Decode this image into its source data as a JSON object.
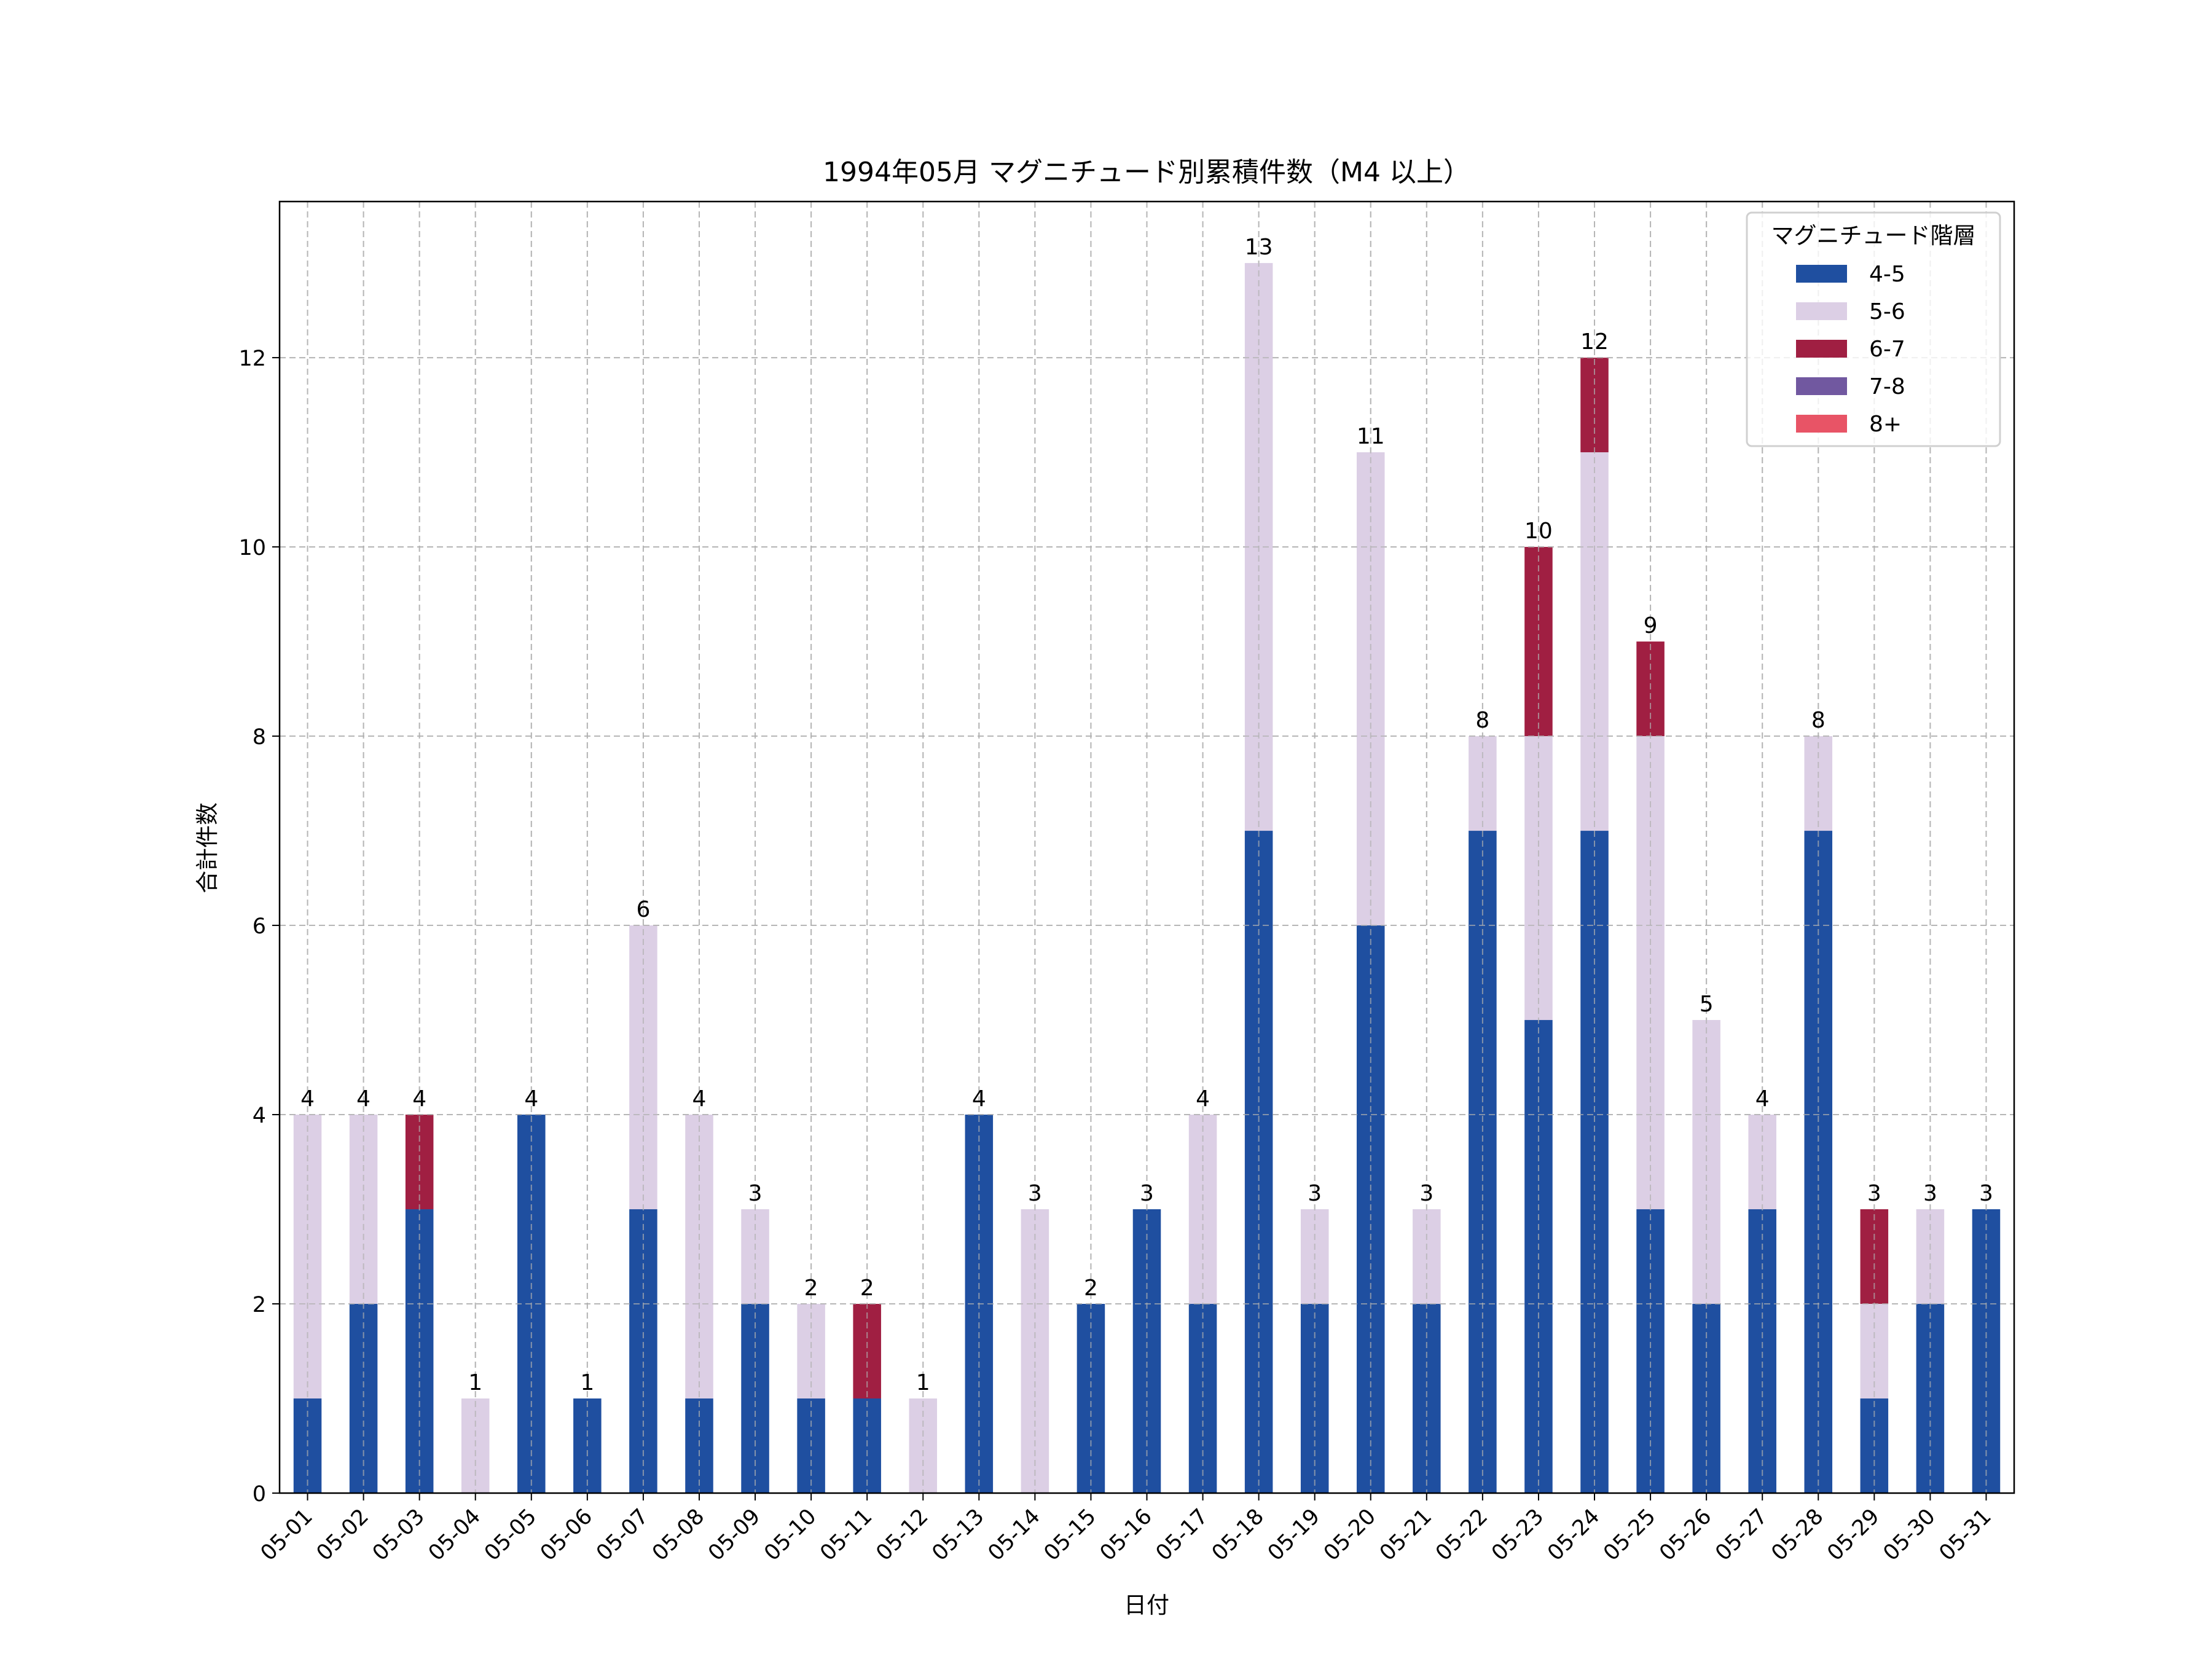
{
  "chart_data": {
    "type": "bar",
    "stacked": true,
    "title": "1994年05月 マグニチュード別累積件数（M4 以上）",
    "xlabel": "日付",
    "ylabel": "合計件数",
    "ylim": [
      0,
      13.65
    ],
    "yticks": [
      0,
      2,
      4,
      6,
      8,
      10,
      12
    ],
    "grid": true,
    "legend": {
      "title": "マグニチュード階層",
      "placement": "top-right"
    },
    "categories": [
      "05-01",
      "05-02",
      "05-03",
      "05-04",
      "05-05",
      "05-06",
      "05-07",
      "05-08",
      "05-09",
      "05-10",
      "05-11",
      "05-12",
      "05-13",
      "05-14",
      "05-15",
      "05-16",
      "05-17",
      "05-18",
      "05-19",
      "05-20",
      "05-21",
      "05-22",
      "05-23",
      "05-24",
      "05-25",
      "05-26",
      "05-27",
      "05-28",
      "05-29",
      "05-30",
      "05-31"
    ],
    "series": [
      {
        "name": "4-5",
        "color": "#1f4fa0",
        "values": [
          1,
          2,
          3,
          0,
          4,
          1,
          3,
          1,
          2,
          1,
          1,
          0,
          4,
          0,
          2,
          3,
          2,
          7,
          2,
          6,
          2,
          7,
          5,
          7,
          3,
          2,
          3,
          7,
          1,
          2,
          3
        ]
      },
      {
        "name": "5-6",
        "color": "#dccfe5",
        "values": [
          3,
          2,
          0,
          1,
          0,
          0,
          3,
          3,
          1,
          1,
          0,
          1,
          0,
          3,
          0,
          0,
          2,
          6,
          1,
          5,
          1,
          1,
          3,
          4,
          5,
          3,
          1,
          1,
          1,
          1,
          0
        ]
      },
      {
        "name": "6-7",
        "color": "#a01f42",
        "values": [
          0,
          0,
          1,
          0,
          0,
          0,
          0,
          0,
          0,
          0,
          1,
          0,
          0,
          0,
          0,
          0,
          0,
          0,
          0,
          0,
          0,
          0,
          2,
          1,
          1,
          0,
          0,
          0,
          1,
          0,
          0
        ]
      },
      {
        "name": "7-8",
        "color": "#7158a0",
        "values": [
          0,
          0,
          0,
          0,
          0,
          0,
          0,
          0,
          0,
          0,
          0,
          0,
          0,
          0,
          0,
          0,
          0,
          0,
          0,
          0,
          0,
          0,
          0,
          0,
          0,
          0,
          0,
          0,
          0,
          0,
          0
        ]
      },
      {
        "name": "8+",
        "color": "#e85466",
        "values": [
          0,
          0,
          0,
          0,
          0,
          0,
          0,
          0,
          0,
          0,
          0,
          0,
          0,
          0,
          0,
          0,
          0,
          0,
          0,
          0,
          0,
          0,
          0,
          0,
          0,
          0,
          0,
          0,
          0,
          0,
          0
        ]
      }
    ],
    "totals": [
      4,
      4,
      4,
      1,
      4,
      1,
      6,
      4,
      3,
      2,
      2,
      1,
      4,
      3,
      2,
      3,
      4,
      13,
      3,
      11,
      3,
      8,
      10,
      12,
      9,
      5,
      4,
      8,
      3,
      3,
      3
    ]
  }
}
